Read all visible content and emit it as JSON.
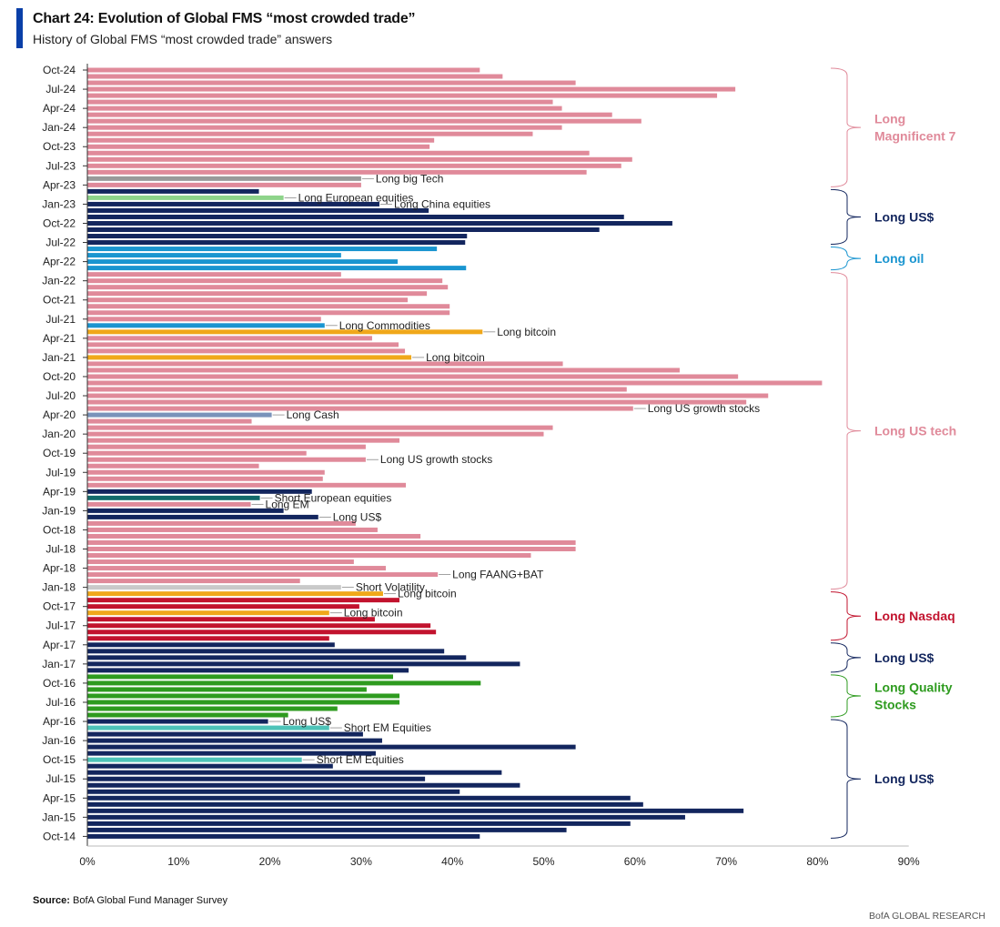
{
  "header": {
    "title": "Chart 24: Evolution of Global FMS “most crowded trade”",
    "subtitle": "History of Global FMS “most crowded trade” answers"
  },
  "footer": {
    "source_label": "Source:",
    "source_text": "BofA Global Fund Manager Survey",
    "brand": "BofA GLOBAL RESEARCH"
  },
  "colors": {
    "Long Magnificent 7": "#e08a9a",
    "Long US tech": "#e08a9a",
    "Long US$": "#13265e",
    "Long oil": "#1a95d0",
    "Long Nasdaq": "#c2132e",
    "Long Quality Stocks": "#2e9b1f",
    "Long bitcoin": "#f0a81a",
    "Long European equities": "#8ed48a",
    "Short European equities": "#126b6b",
    "Short EM Equities": "#4ec3b8",
    "Long Commodities": "#1a95d0",
    "Long Cash": "#7a93ba",
    "Short Volatility": "#c9c9c9"
  },
  "chart_data": {
    "type": "bar",
    "orientation": "horizontal",
    "x_axis": {
      "ticks": [
        "0%",
        "10%",
        "20%",
        "30%",
        "40%",
        "50%",
        "60%",
        "70%",
        "80%",
        "90%"
      ],
      "xlim": [
        0,
        90
      ]
    },
    "y_tick_labels": [
      "Oct-24",
      "Jul-24",
      "Apr-24",
      "Jan-24",
      "Oct-23",
      "Jul-23",
      "Apr-23",
      "Jan-23",
      "Oct-22",
      "Jul-22",
      "Apr-22",
      "Jan-22",
      "Oct-21",
      "Jul-21",
      "Apr-21",
      "Jan-21",
      "Oct-20",
      "Jul-20",
      "Apr-20",
      "Jan-20",
      "Oct-19",
      "Jul-19",
      "Apr-19",
      "Jan-19",
      "Oct-18",
      "Jul-18",
      "Apr-18",
      "Jan-18",
      "Oct-17",
      "Jul-17",
      "Apr-17",
      "Jan-17",
      "Oct-16",
      "Jul-16",
      "Apr-16",
      "Jan-16",
      "Oct-15",
      "Jul-15",
      "Apr-15",
      "Jan-15",
      "Oct-14"
    ],
    "bars": [
      {
        "date": "Oct-24",
        "value": 43,
        "trade": "Long Magnificent 7"
      },
      {
        "date": "Sep-24",
        "value": 45.5,
        "trade": "Long Magnificent 7"
      },
      {
        "date": "Aug-24",
        "value": 53.5,
        "trade": "Long Magnificent 7"
      },
      {
        "date": "Jul-24",
        "value": 71,
        "trade": "Long Magnificent 7"
      },
      {
        "date": "Jun-24",
        "value": 69,
        "trade": "Long Magnificent 7"
      },
      {
        "date": "May-24",
        "value": 51,
        "trade": "Long Magnificent 7"
      },
      {
        "date": "Apr-24",
        "value": 52,
        "trade": "Long Magnificent 7"
      },
      {
        "date": "Mar-24",
        "value": 57.5,
        "trade": "Long Magnificent 7"
      },
      {
        "date": "Feb-24",
        "value": 60.7,
        "trade": "Long Magnificent 7"
      },
      {
        "date": "Jan-24",
        "value": 52,
        "trade": "Long Magnificent 7"
      },
      {
        "date": "Dec-23",
        "value": 48.8,
        "trade": "Long Magnificent 7"
      },
      {
        "date": "Nov-23",
        "value": 38,
        "trade": "Long Magnificent 7"
      },
      {
        "date": "Oct-23",
        "value": 37.5,
        "trade": "Long Magnificent 7"
      },
      {
        "date": "Sep-23",
        "value": 55,
        "trade": "Long Magnificent 7"
      },
      {
        "date": "Aug-23",
        "value": 59.7,
        "trade": "Long Magnificent 7"
      },
      {
        "date": "Jul-23",
        "value": 58.5,
        "trade": "Long Magnificent 7"
      },
      {
        "date": "Jun-23",
        "value": 54.7,
        "trade": "Long Magnificent 7"
      },
      {
        "date": "May-23",
        "value": 30,
        "trade": "Long big Tech",
        "label": "Long big Tech"
      },
      {
        "date": "Apr-23",
        "value": 30,
        "trade": "Long Magnificent 7"
      },
      {
        "date": "Mar-23",
        "value": 18.8,
        "trade": "Long US$"
      },
      {
        "date": "Feb-23",
        "value": 21.5,
        "trade": "Long European equities",
        "label": "Long European equities"
      },
      {
        "date": "Jan-23",
        "value": 32,
        "trade": "Long US$",
        "label": "Long China equities"
      },
      {
        "date": "Dec-22",
        "value": 37.4,
        "trade": "Long US$"
      },
      {
        "date": "Nov-22",
        "value": 58.8,
        "trade": "Long US$"
      },
      {
        "date": "Oct-22",
        "value": 64.1,
        "trade": "Long US$"
      },
      {
        "date": "Sep-22",
        "value": 56.1,
        "trade": "Long US$"
      },
      {
        "date": "Aug-22",
        "value": 41.6,
        "trade": "Long US$"
      },
      {
        "date": "Jul-22",
        "value": 41.4,
        "trade": "Long US$"
      },
      {
        "date": "Jun-22",
        "value": 38.3,
        "trade": "Long oil"
      },
      {
        "date": "May-22",
        "value": 27.8,
        "trade": "Long oil"
      },
      {
        "date": "Apr-22",
        "value": 34,
        "trade": "Long oil"
      },
      {
        "date": "Mar-22",
        "value": 41.5,
        "trade": "Long oil"
      },
      {
        "date": "Feb-22",
        "value": 27.8,
        "trade": "Long US tech"
      },
      {
        "date": "Jan-22",
        "value": 38.9,
        "trade": "Long US tech"
      },
      {
        "date": "Dec-21",
        "value": 39.5,
        "trade": "Long US tech"
      },
      {
        "date": "Nov-21",
        "value": 37.2,
        "trade": "Long US tech"
      },
      {
        "date": "Oct-21",
        "value": 35.1,
        "trade": "Long US tech"
      },
      {
        "date": "Sep-21",
        "value": 39.7,
        "trade": "Long US tech"
      },
      {
        "date": "Aug-21",
        "value": 39.7,
        "trade": "Long US tech"
      },
      {
        "date": "Jul-21",
        "value": 25.6,
        "trade": "Long US tech"
      },
      {
        "date": "Jun-21",
        "value": 26,
        "trade": "Long Commodities",
        "label": "Long Commodities"
      },
      {
        "date": "May-21",
        "value": 43.3,
        "trade": "Long bitcoin",
        "label": "Long bitcoin"
      },
      {
        "date": "Apr-21",
        "value": 31.2,
        "trade": "Long US tech"
      },
      {
        "date": "Mar-21",
        "value": 34.1,
        "trade": "Long US tech"
      },
      {
        "date": "Feb-21",
        "value": 34.8,
        "trade": "Long US tech"
      },
      {
        "date": "Jan-21",
        "value": 35.5,
        "trade": "Long bitcoin",
        "label": "Long bitcoin"
      },
      {
        "date": "Dec-20",
        "value": 52.1,
        "trade": "Long US tech"
      },
      {
        "date": "Nov-20",
        "value": 64.9,
        "trade": "Long US tech"
      },
      {
        "date": "Oct-20",
        "value": 71.3,
        "trade": "Long US tech"
      },
      {
        "date": "Sep-20",
        "value": 80.5,
        "trade": "Long US tech"
      },
      {
        "date": "Aug-20",
        "value": 59.1,
        "trade": "Long US tech"
      },
      {
        "date": "Jul-20",
        "value": 74.6,
        "trade": "Long US tech"
      },
      {
        "date": "Jun-20",
        "value": 72.2,
        "trade": "Long US tech"
      },
      {
        "date": "May-20",
        "value": 59.8,
        "trade": "Long US tech",
        "label": "Long US growth stocks"
      },
      {
        "date": "Apr-20",
        "value": 20.2,
        "trade": "Long Cash",
        "label": "Long Cash"
      },
      {
        "date": "Mar-20",
        "value": 18,
        "trade": "Long US tech"
      },
      {
        "date": "Feb-20",
        "value": 51,
        "trade": "Long US tech"
      },
      {
        "date": "Jan-20",
        "value": 50,
        "trade": "Long US tech"
      },
      {
        "date": "Dec-19",
        "value": 34.2,
        "trade": "Long US tech"
      },
      {
        "date": "Nov-19",
        "value": 30.5,
        "trade": "Long US tech"
      },
      {
        "date": "Oct-19",
        "value": 24,
        "trade": "Long US tech"
      },
      {
        "date": "Sep-19",
        "value": 30.5,
        "trade": "Long US tech",
        "label": "Long US growth stocks"
      },
      {
        "date": "Aug-19",
        "value": 18.8,
        "trade": "Long US tech"
      },
      {
        "date": "Jul-19",
        "value": 26,
        "trade": "Long US tech"
      },
      {
        "date": "Jun-19",
        "value": 25.8,
        "trade": "Long US tech"
      },
      {
        "date": "May-19",
        "value": 34.9,
        "trade": "Long US tech"
      },
      {
        "date": "Apr-19",
        "value": 24.6,
        "trade": "Long US$"
      },
      {
        "date": "Mar-19",
        "value": 18.9,
        "trade": "Short European equities",
        "label": "Short European equities"
      },
      {
        "date": "Feb-19",
        "value": 17.9,
        "trade": "Long US tech",
        "label": "Long EM"
      },
      {
        "date": "Jan-19",
        "value": 21.5,
        "trade": "Long US$"
      },
      {
        "date": "Dec-18",
        "value": 25.3,
        "trade": "Long US$",
        "label": "Long US$"
      },
      {
        "date": "Nov-18",
        "value": 29.4,
        "trade": "Long US tech"
      },
      {
        "date": "Oct-18",
        "value": 31.8,
        "trade": "Long US tech"
      },
      {
        "date": "Sep-18",
        "value": 36.5,
        "trade": "Long US tech"
      },
      {
        "date": "Aug-18",
        "value": 53.5,
        "trade": "Long US tech"
      },
      {
        "date": "Jul-18",
        "value": 53.5,
        "trade": "Long US tech"
      },
      {
        "date": "Jun-18",
        "value": 48.6,
        "trade": "Long US tech"
      },
      {
        "date": "May-18",
        "value": 29.2,
        "trade": "Long US tech"
      },
      {
        "date": "Apr-18",
        "value": 32.7,
        "trade": "Long US tech"
      },
      {
        "date": "Mar-18",
        "value": 38.4,
        "trade": "Long US tech",
        "label": "Long FAANG+BAT"
      },
      {
        "date": "Feb-18",
        "value": 23.3,
        "trade": "Long US tech"
      },
      {
        "date": "Jan-18",
        "value": 27.8,
        "trade": "Short Volatility",
        "label": "Short Volatility"
      },
      {
        "date": "Dec-17",
        "value": 32.4,
        "trade": "Long bitcoin",
        "label": "Long bitcoin"
      },
      {
        "date": "Nov-17",
        "value": 34.2,
        "trade": "Long Nasdaq"
      },
      {
        "date": "Oct-17",
        "value": 29.8,
        "trade": "Long Nasdaq"
      },
      {
        "date": "Sep-17",
        "value": 26.5,
        "trade": "Long bitcoin",
        "label": "Long bitcoin"
      },
      {
        "date": "Aug-17",
        "value": 31.5,
        "trade": "Long Nasdaq"
      },
      {
        "date": "Jul-17",
        "value": 37.6,
        "trade": "Long Nasdaq"
      },
      {
        "date": "Jun-17",
        "value": 38.2,
        "trade": "Long Nasdaq"
      },
      {
        "date": "May-17",
        "value": 26.5,
        "trade": "Long Nasdaq"
      },
      {
        "date": "Apr-17",
        "value": 27.1,
        "trade": "Long US$"
      },
      {
        "date": "Mar-17",
        "value": 39.1,
        "trade": "Long US$"
      },
      {
        "date": "Feb-17",
        "value": 41.5,
        "trade": "Long US$"
      },
      {
        "date": "Jan-17",
        "value": 47.4,
        "trade": "Long US$"
      },
      {
        "date": "Dec-16",
        "value": 35.2,
        "trade": "Long US$"
      },
      {
        "date": "Nov-16",
        "value": 33.5,
        "trade": "Long Quality Stocks"
      },
      {
        "date": "Oct-16",
        "value": 43.1,
        "trade": "Long Quality Stocks"
      },
      {
        "date": "Sep-16",
        "value": 30.6,
        "trade": "Long Quality Stocks"
      },
      {
        "date": "Aug-16",
        "value": 34.2,
        "trade": "Long Quality Stocks"
      },
      {
        "date": "Jul-16",
        "value": 34.2,
        "trade": "Long Quality Stocks"
      },
      {
        "date": "Jun-16",
        "value": 27.4,
        "trade": "Long Quality Stocks"
      },
      {
        "date": "May-16",
        "value": 22,
        "trade": "Long Quality Stocks"
      },
      {
        "date": "Apr-16",
        "value": 19.8,
        "trade": "Long US$",
        "label": "Long US$"
      },
      {
        "date": "Mar-16",
        "value": 26.5,
        "trade": "Short EM Equities",
        "label": "Short EM Equities"
      },
      {
        "date": "Feb-16",
        "value": 30.2,
        "trade": "Long US$"
      },
      {
        "date": "Jan-16",
        "value": 32.3,
        "trade": "Long US$"
      },
      {
        "date": "Dec-15",
        "value": 53.5,
        "trade": "Long US$"
      },
      {
        "date": "Nov-15",
        "value": 31.6,
        "trade": "Long US$"
      },
      {
        "date": "Oct-15",
        "value": 23.5,
        "trade": "Short EM Equities",
        "label": "Short EM Equities"
      },
      {
        "date": "Sep-15",
        "value": 26.9,
        "trade": "Long US$"
      },
      {
        "date": "Aug-15",
        "value": 45.4,
        "trade": "Long US$"
      },
      {
        "date": "Jul-15",
        "value": 37,
        "trade": "Long US$"
      },
      {
        "date": "Jun-15",
        "value": 47.4,
        "trade": "Long US$"
      },
      {
        "date": "May-15",
        "value": 40.8,
        "trade": "Long US$"
      },
      {
        "date": "Apr-15",
        "value": 59.5,
        "trade": "Long US$"
      },
      {
        "date": "Mar-15",
        "value": 60.9,
        "trade": "Long US$"
      },
      {
        "date": "Feb-15",
        "value": 71.9,
        "trade": "Long US$"
      },
      {
        "date": "Jan-15",
        "value": 65.5,
        "trade": "Long US$"
      },
      {
        "date": "Dec-14",
        "value": 59.5,
        "trade": "Long US$"
      },
      {
        "date": "Nov-14",
        "value": 52.5,
        "trade": "Long US$"
      },
      {
        "date": "Oct-14",
        "value": 43,
        "trade": "Long US$"
      }
    ],
    "brackets": [
      {
        "from": "Oct-24",
        "to": "Apr-23",
        "label": [
          "Long",
          "Magnificent 7"
        ],
        "color": "#e08a9a"
      },
      {
        "from": "Mar-23",
        "to": "Jul-22",
        "label": [
          "Long US$"
        ],
        "color": "#13265e"
      },
      {
        "from": "Jun-22",
        "to": "Mar-22",
        "label": [
          "Long oil"
        ],
        "color": "#1a95d0"
      },
      {
        "from": "Feb-22",
        "to": "Jan-18",
        "label": [
          "Long US tech"
        ],
        "color": "#e08a9a"
      },
      {
        "from": "Dec-17",
        "to": "May-17",
        "label": [
          "Long Nasdaq"
        ],
        "color": "#c2132e"
      },
      {
        "from": "Apr-17",
        "to": "Dec-16",
        "label": [
          "Long US$"
        ],
        "color": "#13265e"
      },
      {
        "from": "Nov-16",
        "to": "May-16",
        "label": [
          "Long Quality",
          "Stocks"
        ],
        "color": "#2e9b1f"
      },
      {
        "from": "Apr-16",
        "to": "Oct-14",
        "label": [
          "Long US$"
        ],
        "color": "#13265e"
      }
    ]
  }
}
